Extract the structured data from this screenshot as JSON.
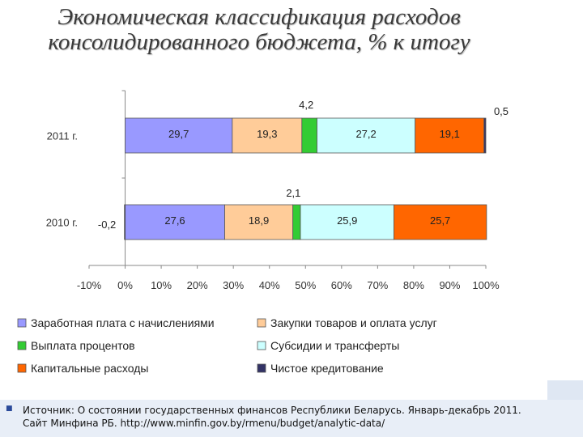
{
  "title": {
    "line1": "Экономическая классификация расходов",
    "line2": "консолидированного бюджета, % к итогу"
  },
  "colors": {
    "wages": "#9999ff",
    "purchases": "#ffcc99",
    "interest": "#33cc33",
    "subsidies": "#ccffff",
    "capital": "#ff6600",
    "net_lending": "#333366"
  },
  "chart_data": {
    "type": "bar",
    "orientation": "horizontal",
    "stacked": true,
    "categories": [
      "2011 г.",
      "2010 г."
    ],
    "series": [
      {
        "name": "Заработная плата с начислениями",
        "color": "#9999ff",
        "values": [
          29.7,
          27.6
        ],
        "labels": [
          "29,7",
          "27,6"
        ]
      },
      {
        "name": "Закупки товаров и оплата услуг",
        "color": "#ffcc99",
        "values": [
          19.3,
          18.9
        ],
        "labels": [
          "19,3",
          "18,9"
        ]
      },
      {
        "name": "Выплата процентов",
        "color": "#33cc33",
        "values": [
          4.2,
          2.1
        ],
        "labels": [
          "4,2",
          "2,1"
        ]
      },
      {
        "name": "Субсидии и трансферты",
        "color": "#ccffff",
        "values": [
          27.2,
          25.9
        ],
        "labels": [
          "27,2",
          "25,9"
        ]
      },
      {
        "name": "Капитальные расходы",
        "color": "#ff6600",
        "values": [
          19.1,
          25.7
        ],
        "labels": [
          "19,1",
          "25,7"
        ]
      },
      {
        "name": "Чистое кредитование",
        "color": "#333366",
        "values": [
          0.5,
          -0.2
        ],
        "labels": [
          "0,5",
          "-0,2"
        ]
      }
    ],
    "xlim": [
      -10,
      100
    ],
    "xticks": [
      -10,
      0,
      10,
      20,
      30,
      40,
      50,
      60,
      70,
      80,
      90,
      100
    ],
    "xtick_labels": [
      "-10%",
      "0%",
      "10%",
      "20%",
      "30%",
      "40%",
      "50%",
      "60%",
      "70%",
      "80%",
      "90%",
      "100%"
    ],
    "legend_position": "bottom",
    "grid": false
  },
  "source": {
    "line1": "Источник:  О состоянии государственных финансов Республики Беларусь. Январь-декабрь 2011.",
    "line2": "Сайт Минфина РБ. http://www.minfin.gov.by/rmenu/budget/analytic-data/"
  }
}
